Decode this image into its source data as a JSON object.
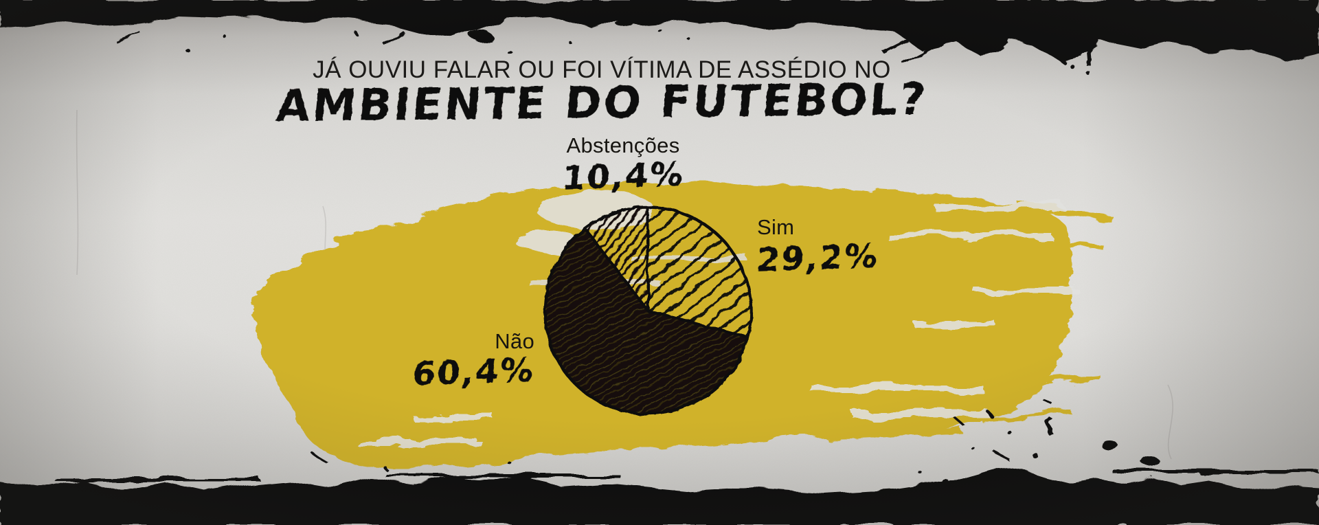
{
  "meta": {
    "language": "pt-BR",
    "style": "grunge ink-and-paint infographic"
  },
  "title": {
    "line1": "JÁ OUVIU FALAR OU FOI VÍTIMA DE ASSÉDIO NO",
    "line2": "AMBIENTE DO FUTEBOL?"
  },
  "colors": {
    "paint_yellow": "#d0b22b",
    "ink_black": "#14110d",
    "paper_light": "#e2e1de"
  },
  "chart_data": {
    "type": "pie",
    "title": "Já ouviu falar ou foi vítima de assédio no ambiente do futebol?",
    "slices": [
      {
        "label": "Sim",
        "value": 29.2,
        "display": "29,2%",
        "texture": "light-diagonal-hatch"
      },
      {
        "label": "Não",
        "value": 60.4,
        "display": "60,4%",
        "texture": "dense-scribble"
      },
      {
        "label": "Abstenções",
        "value": 10.4,
        "display": "10,4%",
        "texture": "medium-diagonal-hatch"
      }
    ],
    "start_angle_deg": 0,
    "direction": "clockwise",
    "legend_position": "callouts-around-pie",
    "units": "%"
  }
}
